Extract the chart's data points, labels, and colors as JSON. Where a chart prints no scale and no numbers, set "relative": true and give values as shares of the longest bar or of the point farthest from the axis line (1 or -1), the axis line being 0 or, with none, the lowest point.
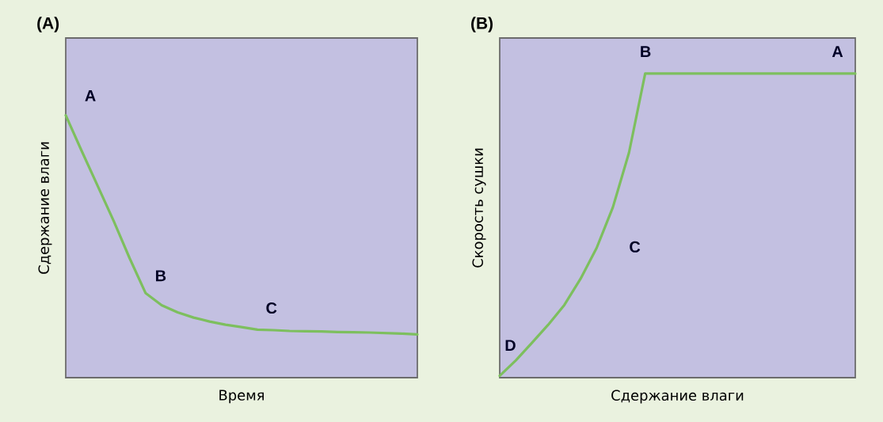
{
  "chart_data": [
    {
      "type": "line",
      "title": "(A)",
      "xlabel": "Время",
      "ylabel": "Сдержание влаги",
      "relative": true,
      "color": "#7dbf5e",
      "categories": [
        null,
        null,
        null,
        null,
        null,
        null,
        null,
        null,
        null,
        null,
        null,
        null,
        null,
        null,
        null,
        null,
        null,
        null,
        null,
        null,
        null,
        null,
        null
      ],
      "values": [
        1,
        0.864,
        0.731,
        0.597,
        0.455,
        0.322,
        0.276,
        0.249,
        0.229,
        0.214,
        0.202,
        0.193,
        0.183,
        0.181,
        0.178,
        0.177,
        0.176,
        0.174,
        0.173,
        0.172,
        0.17,
        0.168,
        0.165
      ],
      "annotations": [
        "A",
        "B",
        "C"
      ]
    },
    {
      "type": "line",
      "title": "(B)",
      "xlabel": "Сдержание влаги",
      "ylabel": "Скорость сушки",
      "relative": true,
      "color": "#7dbf5e",
      "categories": [
        null,
        null,
        null,
        null,
        null,
        null,
        null,
        null,
        null,
        null,
        null,
        null,
        null,
        null,
        null,
        null,
        null,
        null,
        null,
        null,
        null,
        null,
        null
      ],
      "values": [
        0.006,
        0.057,
        0.115,
        0.174,
        0.239,
        0.325,
        0.427,
        0.56,
        0.74,
        1,
        1,
        1,
        1,
        1,
        1,
        1,
        1,
        1,
        1,
        1,
        1,
        1,
        1
      ],
      "annotations": [
        "B",
        "A",
        "C",
        "D"
      ]
    }
  ]
}
